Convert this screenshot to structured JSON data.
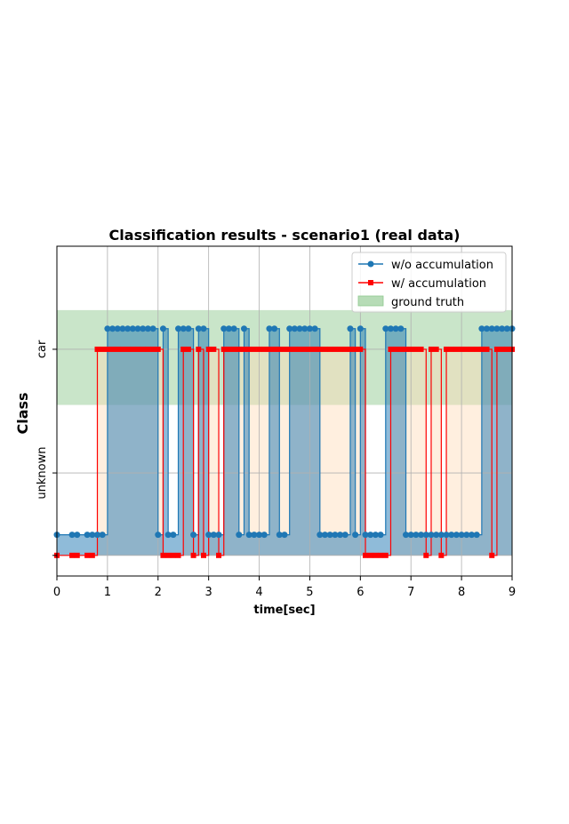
{
  "chart_data": {
    "type": "line",
    "title": "Classification results - scenario1 (real data)",
    "xlabel": "time[sec]",
    "ylabel": "Class",
    "xlim": [
      0,
      9
    ],
    "ylim": [
      -0.1,
      1.5
    ],
    "x_ticks": [
      "0",
      "1",
      "2",
      "3",
      "4",
      "5",
      "6",
      "7",
      "8",
      "9"
    ],
    "y_ticks": [
      {
        "value": 0,
        "label": ""
      },
      {
        "value": 0.4,
        "label": "unknown"
      },
      {
        "value": 1.0,
        "label": "car"
      }
    ],
    "grid": true,
    "legend_position": "top-right",
    "ground_truth": {
      "name": "ground truth",
      "y_range": [
        0.73,
        1.19
      ],
      "color": "#b7dcb7"
    },
    "series": [
      {
        "name": "w/o accumulation",
        "color": "#1f77b4",
        "marker": "circle",
        "low_value": 0.1,
        "high_value": 1.1,
        "x": [
          0.0,
          0.3,
          0.4,
          0.6,
          0.7,
          0.8,
          0.9,
          1.0,
          1.1,
          1.2,
          1.3,
          1.4,
          1.5,
          1.6,
          1.7,
          1.8,
          1.9,
          2.0,
          2.1,
          2.2,
          2.3,
          2.4,
          2.5,
          2.6,
          2.7,
          2.8,
          2.9,
          3.0,
          3.1,
          3.2,
          3.3,
          3.4,
          3.5,
          3.6,
          3.7,
          3.8,
          3.9,
          4.0,
          4.1,
          4.2,
          4.3,
          4.4,
          4.5,
          4.6,
          4.7,
          4.8,
          4.9,
          5.0,
          5.1,
          5.2,
          5.3,
          5.4,
          5.5,
          5.6,
          5.7,
          5.8,
          5.9,
          6.0,
          6.1,
          6.2,
          6.3,
          6.4,
          6.5,
          6.6,
          6.7,
          6.8,
          6.9,
          7.0,
          7.1,
          7.2,
          7.3,
          7.4,
          7.5,
          7.6,
          7.7,
          7.8,
          7.9,
          8.0,
          8.1,
          8.2,
          8.3,
          8.4,
          8.5,
          8.6,
          8.7,
          8.8,
          8.9,
          9.0
        ],
        "y": [
          0.1,
          0.1,
          0.1,
          0.1,
          0.1,
          0.1,
          0.1,
          1.1,
          1.1,
          1.1,
          1.1,
          1.1,
          1.1,
          1.1,
          1.1,
          1.1,
          1.1,
          0.1,
          1.1,
          0.1,
          0.1,
          1.1,
          1.1,
          1.1,
          0.1,
          1.1,
          1.1,
          0.1,
          0.1,
          0.1,
          1.1,
          1.1,
          1.1,
          0.1,
          1.1,
          0.1,
          0.1,
          0.1,
          0.1,
          1.1,
          1.1,
          0.1,
          0.1,
          1.1,
          1.1,
          1.1,
          1.1,
          1.1,
          1.1,
          0.1,
          0.1,
          0.1,
          0.1,
          0.1,
          0.1,
          1.1,
          0.1,
          1.1,
          0.1,
          0.1,
          0.1,
          0.1,
          1.1,
          1.1,
          1.1,
          1.1,
          0.1,
          0.1,
          0.1,
          0.1,
          0.1,
          0.1,
          0.1,
          0.1,
          0.1,
          0.1,
          0.1,
          0.1,
          0.1,
          0.1,
          0.1,
          1.1,
          1.1,
          1.1,
          1.1,
          1.1,
          1.1,
          1.1
        ]
      },
      {
        "name": "w/ accumulation",
        "color": "#ff0000",
        "marker": "square",
        "low_value": 0.0,
        "high_value": 1.0,
        "x": [
          0.0,
          0.3,
          0.4,
          0.6,
          0.7,
          0.8,
          0.9,
          1.0,
          1.1,
          1.2,
          1.3,
          1.4,
          1.5,
          1.6,
          1.7,
          1.8,
          1.9,
          2.0,
          2.1,
          2.2,
          2.3,
          2.4,
          2.5,
          2.6,
          2.7,
          2.8,
          2.9,
          3.0,
          3.1,
          3.2,
          3.3,
          3.4,
          3.5,
          3.6,
          3.7,
          3.8,
          3.9,
          4.0,
          4.1,
          4.2,
          4.3,
          4.4,
          4.5,
          4.6,
          4.7,
          4.8,
          4.9,
          5.0,
          5.1,
          5.2,
          5.3,
          5.4,
          5.5,
          5.6,
          5.7,
          5.8,
          5.9,
          6.0,
          6.1,
          6.2,
          6.3,
          6.4,
          6.5,
          6.6,
          6.7,
          6.8,
          6.9,
          7.0,
          7.1,
          7.2,
          7.3,
          7.4,
          7.5,
          7.6,
          7.7,
          7.8,
          7.9,
          8.0,
          8.1,
          8.2,
          8.3,
          8.4,
          8.5,
          8.6,
          8.7,
          8.8,
          8.9,
          9.0
        ],
        "y": [
          0.0,
          0.0,
          0.0,
          0.0,
          0.0,
          1.0,
          1.0,
          1.0,
          1.0,
          1.0,
          1.0,
          1.0,
          1.0,
          1.0,
          1.0,
          1.0,
          1.0,
          1.0,
          0.0,
          0.0,
          0.0,
          0.0,
          1.0,
          1.0,
          0.0,
          1.0,
          0.0,
          1.0,
          1.0,
          0.0,
          1.0,
          1.0,
          1.0,
          1.0,
          1.0,
          1.0,
          1.0,
          1.0,
          1.0,
          1.0,
          1.0,
          1.0,
          1.0,
          1.0,
          1.0,
          1.0,
          1.0,
          1.0,
          1.0,
          1.0,
          1.0,
          1.0,
          1.0,
          1.0,
          1.0,
          1.0,
          1.0,
          1.0,
          0.0,
          0.0,
          0.0,
          0.0,
          0.0,
          1.0,
          1.0,
          1.0,
          1.0,
          1.0,
          1.0,
          1.0,
          0.0,
          1.0,
          1.0,
          0.0,
          1.0,
          1.0,
          1.0,
          1.0,
          1.0,
          1.0,
          1.0,
          1.0,
          1.0,
          0.0,
          1.0,
          1.0,
          1.0,
          1.0
        ]
      }
    ]
  }
}
